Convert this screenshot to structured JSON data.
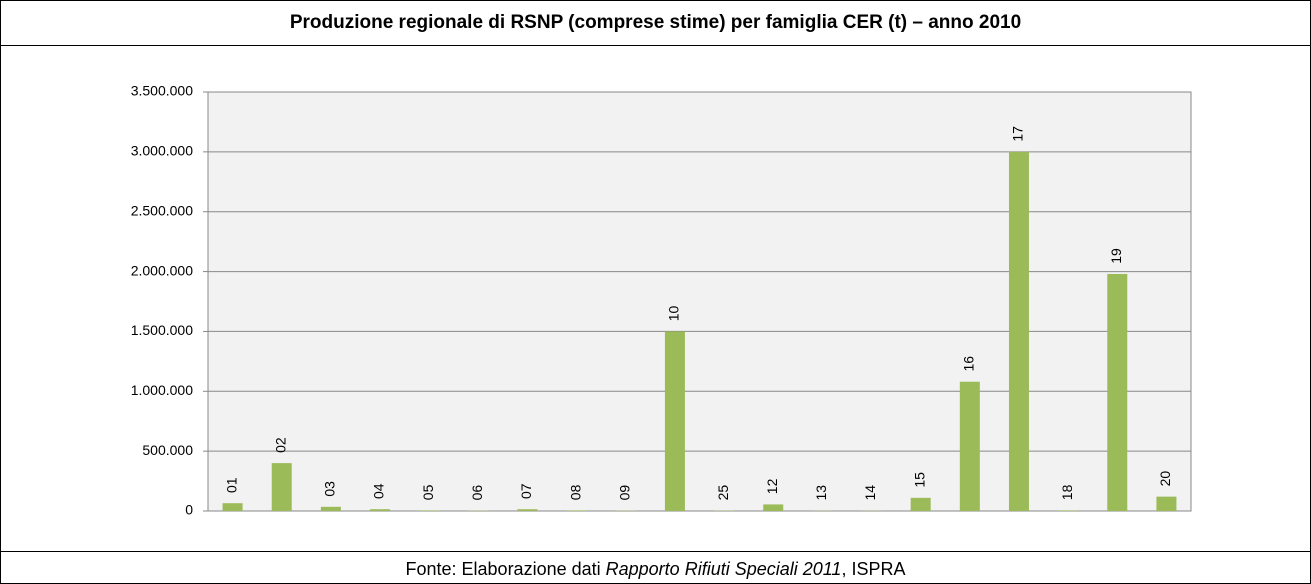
{
  "chart_data": {
    "type": "bar",
    "title": "Produzione regionale di RSNP (comprese stime) per famiglia CER (t) – anno 2010",
    "categories": [
      "01",
      "02",
      "03",
      "04",
      "05",
      "06",
      "07",
      "08",
      "09",
      "10",
      "25",
      "12",
      "13",
      "14",
      "15",
      "16",
      "17",
      "18",
      "19",
      "20"
    ],
    "values": [
      65000,
      400000,
      35000,
      15000,
      5000,
      3000,
      15000,
      5000,
      3000,
      1500000,
      3000,
      55000,
      2000,
      2000,
      110000,
      1080000,
      3000000,
      5000,
      1980000,
      120000
    ],
    "color": "#9bbb59",
    "ylim": [
      0,
      3500000
    ],
    "yticks": [
      0,
      {
        "value": 500000,
        "label": "500.000"
      },
      {
        "value": 1000000,
        "label": "1.000.000"
      },
      {
        "value": 1500000,
        "label": "1.500.000"
      },
      {
        "value": 2000000,
        "label": "2.000.000"
      },
      {
        "value": 2500000,
        "label": "2.500.000"
      },
      {
        "value": 3000000,
        "label": "3.000.000"
      },
      {
        "value": 3500000,
        "label": "3.500.000"
      }
    ],
    "grid": true,
    "source": {
      "prefix": "Fonte: Elaborazione dati ",
      "italic": "Rapporto Rifiuti Speciali 2011",
      "suffix": ", ISPRA"
    }
  }
}
